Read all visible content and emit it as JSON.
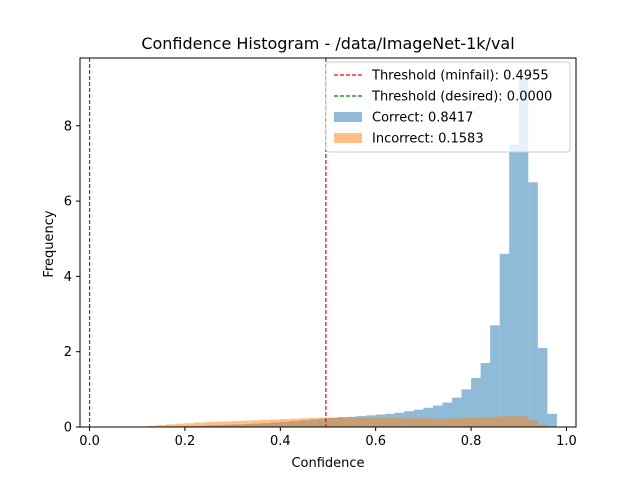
{
  "chart_data": {
    "type": "histogram",
    "title": "Confidence Histogram - /data/ImageNet-1k/val",
    "xlabel": "Confidence",
    "ylabel": "Frequency",
    "xlim": [
      -0.02,
      1.02
    ],
    "ylim": [
      0,
      9.8
    ],
    "xticks": [
      0.0,
      0.2,
      0.4,
      0.6,
      0.8,
      1.0
    ],
    "xtick_labels": [
      "0.0",
      "0.2",
      "0.4",
      "0.6",
      "0.8",
      "1.0"
    ],
    "yticks": [
      0,
      2,
      4,
      6,
      8
    ],
    "ytick_labels": [
      "0",
      "2",
      "4",
      "6",
      "8"
    ],
    "grid": false,
    "legend_position": "top-right",
    "thresholds": [
      {
        "name": "Threshold (minfail): 0.4955",
        "value": 0.4955,
        "color": "#ff0000",
        "style": "dashed"
      },
      {
        "name": "Threshold (desired): 0.0000",
        "value": 0.0,
        "color": "#008000",
        "style": "dashed"
      }
    ],
    "series": [
      {
        "name": "Correct: 0.8417",
        "color": "#1f77b4",
        "opacity": 0.5,
        "bins": [
          [
            0.1,
            0.12,
            0.005
          ],
          [
            0.12,
            0.14,
            0.01
          ],
          [
            0.14,
            0.16,
            0.01
          ],
          [
            0.16,
            0.18,
            0.015
          ],
          [
            0.18,
            0.2,
            0.02
          ],
          [
            0.2,
            0.22,
            0.025
          ],
          [
            0.22,
            0.24,
            0.03
          ],
          [
            0.24,
            0.26,
            0.04
          ],
          [
            0.26,
            0.28,
            0.05
          ],
          [
            0.28,
            0.3,
            0.06
          ],
          [
            0.3,
            0.32,
            0.07
          ],
          [
            0.32,
            0.34,
            0.08
          ],
          [
            0.34,
            0.36,
            0.09
          ],
          [
            0.36,
            0.38,
            0.1
          ],
          [
            0.38,
            0.4,
            0.12
          ],
          [
            0.4,
            0.42,
            0.14
          ],
          [
            0.42,
            0.44,
            0.16
          ],
          [
            0.44,
            0.46,
            0.18
          ],
          [
            0.46,
            0.48,
            0.2
          ],
          [
            0.48,
            0.5,
            0.22
          ],
          [
            0.5,
            0.52,
            0.24
          ],
          [
            0.52,
            0.54,
            0.26
          ],
          [
            0.54,
            0.56,
            0.27
          ],
          [
            0.56,
            0.58,
            0.29
          ],
          [
            0.58,
            0.6,
            0.31
          ],
          [
            0.6,
            0.62,
            0.33
          ],
          [
            0.62,
            0.64,
            0.35
          ],
          [
            0.64,
            0.66,
            0.38
          ],
          [
            0.66,
            0.68,
            0.42
          ],
          [
            0.68,
            0.7,
            0.46
          ],
          [
            0.7,
            0.72,
            0.51
          ],
          [
            0.72,
            0.74,
            0.57
          ],
          [
            0.74,
            0.76,
            0.65
          ],
          [
            0.76,
            0.78,
            0.78
          ],
          [
            0.78,
            0.8,
            1.0
          ],
          [
            0.8,
            0.82,
            1.3
          ],
          [
            0.82,
            0.84,
            1.7
          ],
          [
            0.84,
            0.86,
            2.7
          ],
          [
            0.86,
            0.88,
            4.6
          ],
          [
            0.88,
            0.9,
            7.5
          ],
          [
            0.9,
            0.92,
            9.3
          ],
          [
            0.92,
            0.94,
            6.5
          ],
          [
            0.94,
            0.96,
            2.1
          ],
          [
            0.96,
            0.98,
            0.35
          ]
        ]
      },
      {
        "name": "Incorrect: 0.1583",
        "color": "#ff7f0e",
        "opacity": 0.5,
        "bins": [
          [
            0.1,
            0.12,
            0.01
          ],
          [
            0.12,
            0.14,
            0.03
          ],
          [
            0.14,
            0.16,
            0.05
          ],
          [
            0.16,
            0.18,
            0.07
          ],
          [
            0.18,
            0.2,
            0.09
          ],
          [
            0.2,
            0.22,
            0.1
          ],
          [
            0.22,
            0.24,
            0.12
          ],
          [
            0.24,
            0.26,
            0.13
          ],
          [
            0.26,
            0.28,
            0.14
          ],
          [
            0.28,
            0.3,
            0.15
          ],
          [
            0.3,
            0.32,
            0.16
          ],
          [
            0.32,
            0.34,
            0.17
          ],
          [
            0.34,
            0.36,
            0.18
          ],
          [
            0.36,
            0.38,
            0.19
          ],
          [
            0.38,
            0.4,
            0.2
          ],
          [
            0.4,
            0.42,
            0.21
          ],
          [
            0.42,
            0.44,
            0.22
          ],
          [
            0.44,
            0.46,
            0.23
          ],
          [
            0.46,
            0.48,
            0.24
          ],
          [
            0.48,
            0.5,
            0.25
          ],
          [
            0.5,
            0.52,
            0.25
          ],
          [
            0.52,
            0.54,
            0.26
          ],
          [
            0.54,
            0.56,
            0.25
          ],
          [
            0.56,
            0.58,
            0.25
          ],
          [
            0.58,
            0.6,
            0.25
          ],
          [
            0.6,
            0.62,
            0.24
          ],
          [
            0.62,
            0.64,
            0.24
          ],
          [
            0.64,
            0.66,
            0.24
          ],
          [
            0.66,
            0.68,
            0.23
          ],
          [
            0.68,
            0.7,
            0.23
          ],
          [
            0.7,
            0.72,
            0.23
          ],
          [
            0.72,
            0.74,
            0.22
          ],
          [
            0.74,
            0.76,
            0.22
          ],
          [
            0.76,
            0.78,
            0.23
          ],
          [
            0.78,
            0.8,
            0.24
          ],
          [
            0.8,
            0.82,
            0.25
          ],
          [
            0.82,
            0.84,
            0.26
          ],
          [
            0.84,
            0.86,
            0.27
          ],
          [
            0.86,
            0.88,
            0.28
          ],
          [
            0.88,
            0.9,
            0.29
          ],
          [
            0.9,
            0.92,
            0.28
          ],
          [
            0.92,
            0.94,
            0.18
          ],
          [
            0.94,
            0.96,
            0.06
          ],
          [
            0.96,
            0.98,
            0.01
          ]
        ]
      }
    ]
  }
}
